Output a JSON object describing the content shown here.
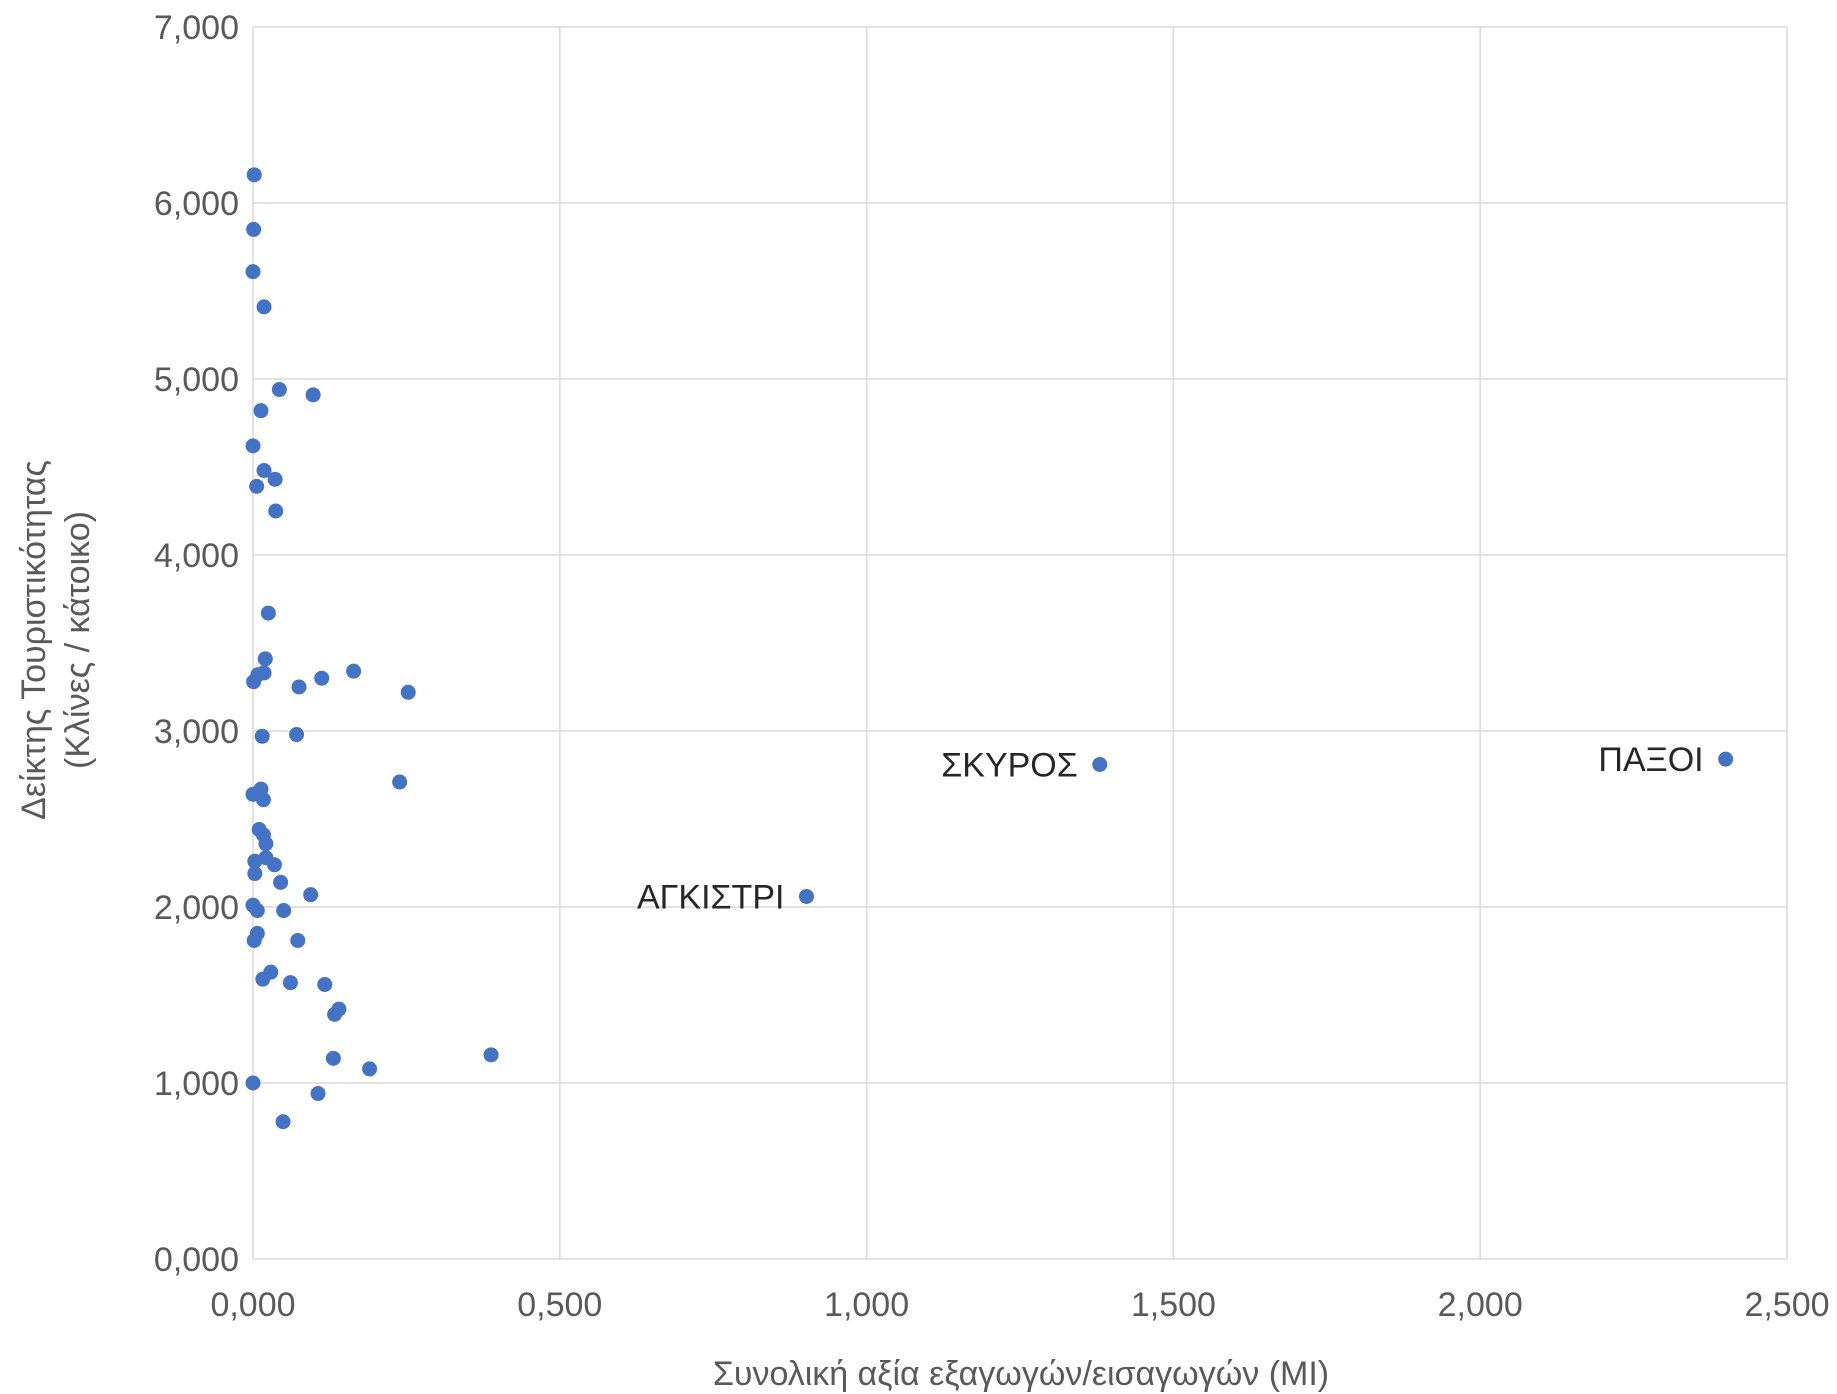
{
  "chart_data": {
    "type": "scatter",
    "title": "",
    "xlabel": "Συνολική αξία εξαγωγών/εισαγωγών (ΜΙ)",
    "ylabel_lines": [
      "Δείκτης Τουριστικότητας",
      "(Κλίνες / κάτοικο)"
    ],
    "xlim": [
      0,
      2.5
    ],
    "ylim": [
      0,
      7
    ],
    "x_ticks": [
      0,
      0.5,
      1,
      1.5,
      2,
      2.5
    ],
    "y_ticks": [
      0,
      1,
      2,
      3,
      4,
      5,
      6,
      7
    ],
    "x_tick_labels": [
      "0,000",
      "0,500",
      "1,000",
      "1,500",
      "2,000",
      "2,500"
    ],
    "y_tick_labels": [
      "0,000",
      "1,000",
      "2,000",
      "3,000",
      "4,000",
      "5,000",
      "6,000",
      "7,000"
    ],
    "grid": true,
    "legend": "none",
    "marker_color": "#4472c4",
    "series": [
      {
        "points": [
          {
            "x": 0.002,
            "y": 6.16
          },
          {
            "x": 0.001,
            "y": 5.85
          },
          {
            "x": 0.0,
            "y": 5.61
          },
          {
            "x": 0.018,
            "y": 5.41
          },
          {
            "x": 0.043,
            "y": 4.94
          },
          {
            "x": 0.098,
            "y": 4.91
          },
          {
            "x": 0.013,
            "y": 4.82
          },
          {
            "x": 0.0,
            "y": 4.62
          },
          {
            "x": 0.018,
            "y": 4.48
          },
          {
            "x": 0.036,
            "y": 4.43
          },
          {
            "x": 0.006,
            "y": 4.39
          },
          {
            "x": 0.037,
            "y": 4.25
          },
          {
            "x": 0.025,
            "y": 3.67
          },
          {
            "x": 0.02,
            "y": 3.41
          },
          {
            "x": 0.008,
            "y": 3.32
          },
          {
            "x": 0.018,
            "y": 3.33
          },
          {
            "x": 0.001,
            "y": 3.28
          },
          {
            "x": 0.075,
            "y": 3.25
          },
          {
            "x": 0.112,
            "y": 3.3
          },
          {
            "x": 0.164,
            "y": 3.34
          },
          {
            "x": 0.253,
            "y": 3.22
          },
          {
            "x": 0.015,
            "y": 2.97
          },
          {
            "x": 0.071,
            "y": 2.98
          },
          {
            "x": 0.0,
            "y": 2.64
          },
          {
            "x": 0.013,
            "y": 2.67
          },
          {
            "x": 0.017,
            "y": 2.61
          },
          {
            "x": 0.239,
            "y": 2.71
          },
          {
            "x": 0.01,
            "y": 2.44
          },
          {
            "x": 0.017,
            "y": 2.41
          },
          {
            "x": 0.021,
            "y": 2.36
          },
          {
            "x": 0.021,
            "y": 2.28
          },
          {
            "x": 0.003,
            "y": 2.26
          },
          {
            "x": 0.035,
            "y": 2.24
          },
          {
            "x": 0.003,
            "y": 2.19
          },
          {
            "x": 0.045,
            "y": 2.14
          },
          {
            "x": 0.094,
            "y": 2.07
          },
          {
            "x": 0.0,
            "y": 2.01
          },
          {
            "x": 0.007,
            "y": 1.98
          },
          {
            "x": 0.05,
            "y": 1.98
          },
          {
            "x": 0.007,
            "y": 1.85
          },
          {
            "x": 0.002,
            "y": 1.81
          },
          {
            "x": 0.073,
            "y": 1.81
          },
          {
            "x": 0.016,
            "y": 1.59
          },
          {
            "x": 0.029,
            "y": 1.63
          },
          {
            "x": 0.061,
            "y": 1.57
          },
          {
            "x": 0.117,
            "y": 1.56
          },
          {
            "x": 0.14,
            "y": 1.42
          },
          {
            "x": 0.133,
            "y": 1.39
          },
          {
            "x": 0.388,
            "y": 1.16
          },
          {
            "x": 0.131,
            "y": 1.14
          },
          {
            "x": 0.19,
            "y": 1.08
          },
          {
            "x": 0.0,
            "y": 1.0
          },
          {
            "x": 0.106,
            "y": 0.94
          },
          {
            "x": 0.049,
            "y": 0.78
          },
          {
            "x": 0.902,
            "y": 2.06
          },
          {
            "x": 1.38,
            "y": 2.81
          },
          {
            "x": 2.4,
            "y": 2.84
          }
        ]
      }
    ],
    "annotations": [
      {
        "text": "ΑΓΚΙΣΤΡΙ",
        "x": 0.902,
        "y": 2.06
      },
      {
        "text": "ΣΚΥΡΟΣ",
        "x": 1.38,
        "y": 2.81
      },
      {
        "text": "ΠΑΞΟΙ",
        "x": 2.4,
        "y": 2.84
      }
    ]
  }
}
